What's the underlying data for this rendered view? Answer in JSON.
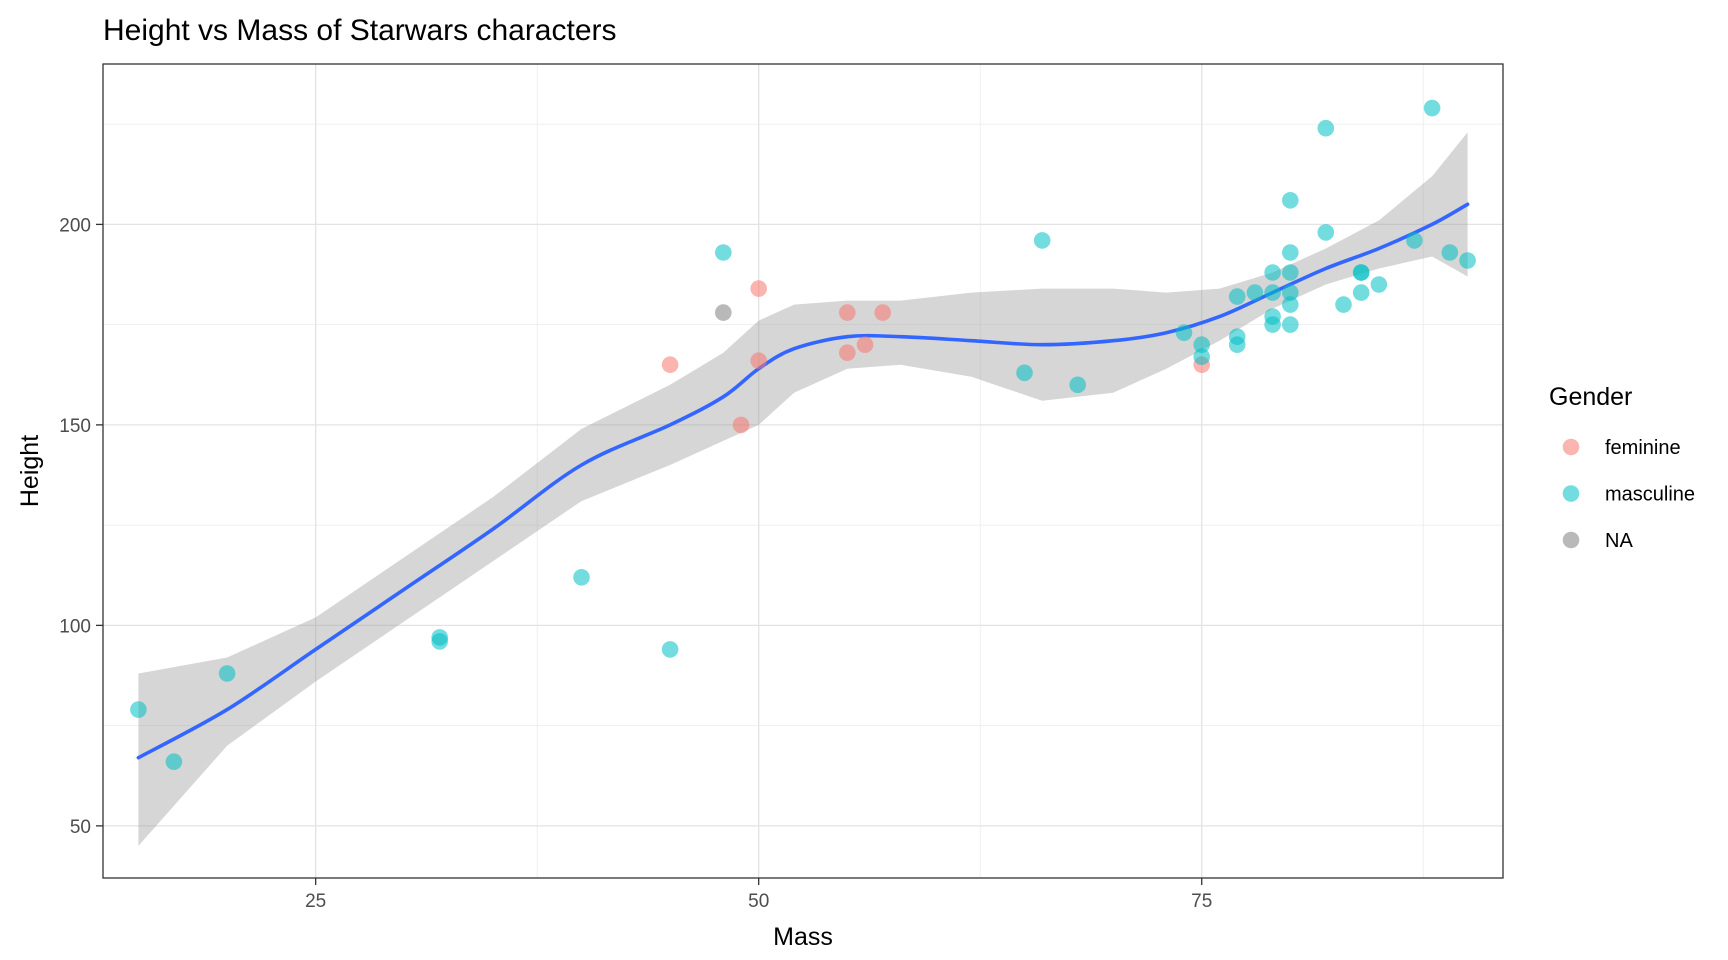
{
  "chart_data": {
    "type": "scatter",
    "title": "Height vs Mass of Starwars characters",
    "xlabel": "Mass",
    "ylabel": "Height",
    "xlim": [
      13,
      92
    ],
    "ylim": [
      37,
      240
    ],
    "x_ticks": [
      25,
      50,
      75
    ],
    "y_ticks": [
      50,
      100,
      150,
      200
    ],
    "grid": true,
    "legend": {
      "title": "Gender",
      "placement": "right",
      "entries": [
        {
          "label": "feminine",
          "color": "#F8766D"
        },
        {
          "label": "masculine",
          "color": "#00BFC4"
        },
        {
          "label": "NA",
          "color": "#808080"
        }
      ]
    },
    "series": [
      {
        "name": "feminine",
        "color": "#F8766D",
        "points": [
          [
            45,
            165
          ],
          [
            49,
            150
          ],
          [
            50,
            184
          ],
          [
            50,
            166
          ],
          [
            55,
            178
          ],
          [
            55,
            168
          ],
          [
            56,
            170
          ],
          [
            57,
            178
          ],
          [
            75,
            165
          ]
        ]
      },
      {
        "name": "masculine",
        "color": "#00BFC4",
        "points": [
          [
            15,
            79
          ],
          [
            17,
            66
          ],
          [
            20,
            88
          ],
          [
            32,
            97
          ],
          [
            32,
            96
          ],
          [
            40,
            112
          ],
          [
            45,
            94
          ],
          [
            48,
            193
          ],
          [
            65,
            163
          ],
          [
            66,
            196
          ],
          [
            68,
            160
          ],
          [
            74,
            173
          ],
          [
            75,
            170
          ],
          [
            75,
            167
          ],
          [
            77,
            182
          ],
          [
            77,
            172
          ],
          [
            77,
            170
          ],
          [
            78,
            183
          ],
          [
            79,
            188
          ],
          [
            79,
            183
          ],
          [
            79,
            177
          ],
          [
            79,
            175
          ],
          [
            80,
            206
          ],
          [
            80,
            193
          ],
          [
            80,
            188
          ],
          [
            80,
            183
          ],
          [
            80,
            180
          ],
          [
            80,
            175
          ],
          [
            82,
            224
          ],
          [
            82,
            198
          ],
          [
            83,
            180
          ],
          [
            84,
            188
          ],
          [
            84,
            183
          ],
          [
            84,
            188
          ],
          [
            85,
            185
          ],
          [
            87,
            196
          ],
          [
            88,
            229
          ],
          [
            89,
            193
          ],
          [
            90,
            191
          ]
        ]
      },
      {
        "name": "NA",
        "color": "#808080",
        "points": [
          [
            48,
            178
          ]
        ]
      }
    ],
    "smooth": {
      "method": "loess",
      "color": "#3366FF",
      "band_color": "#999999",
      "x": [
        15,
        20,
        25,
        30,
        35,
        40,
        45,
        48,
        50,
        52,
        55,
        58,
        62,
        66,
        70,
        73,
        76,
        79,
        82,
        85,
        88,
        90
      ],
      "y": [
        67,
        79,
        94,
        109,
        124,
        140,
        150,
        157,
        164,
        169,
        172,
        172,
        171,
        170,
        171,
        173,
        177,
        183,
        189,
        194,
        200,
        205
      ],
      "ymin": [
        45,
        70,
        86,
        101,
        116,
        131,
        140,
        146,
        150,
        158,
        164,
        165,
        162,
        156,
        158,
        164,
        171,
        179,
        185,
        189,
        192,
        187
      ],
      "ymax": [
        88,
        92,
        102,
        117,
        132,
        149,
        160,
        168,
        176,
        180,
        181,
        181,
        183,
        184,
        184,
        183,
        184,
        188,
        194,
        201,
        212,
        223
      ]
    }
  }
}
